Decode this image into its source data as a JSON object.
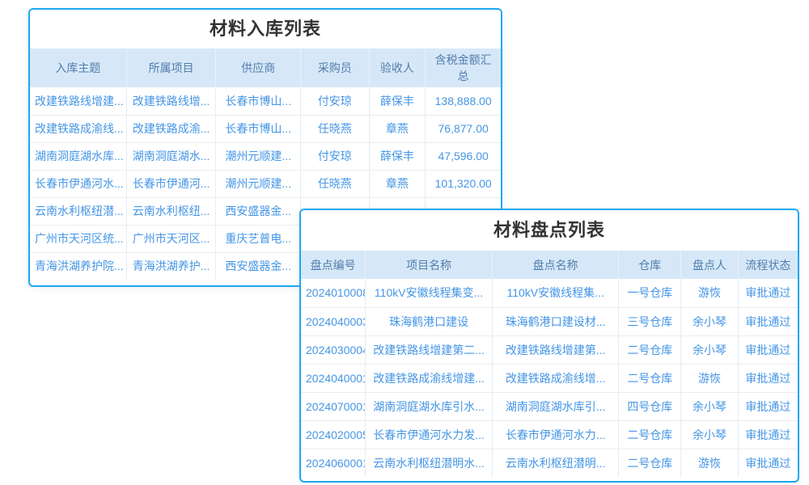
{
  "colors": {
    "panel_border": "#1ba8f0",
    "header_bg": "#d6e8f8",
    "header_text": "#527dab",
    "link_text": "#4596e5",
    "amount_text": "#333333",
    "status_approved": "#4caf50",
    "title_text": "#333333"
  },
  "inbound": {
    "title": "材料入库列表",
    "columns": [
      "入库主题",
      "所属项目",
      "供应商",
      "采购员",
      "验收人",
      "含税金额汇总"
    ],
    "rows": [
      [
        "改建铁路线增建...",
        "改建铁路线增...",
        "长春市博山...",
        "付安琼",
        "薛保丰",
        "138,888.00"
      ],
      [
        "改建铁路成渝线...",
        "改建铁路成渝...",
        "长春市博山...",
        "任晓燕",
        "章燕",
        "76,877.00"
      ],
      [
        "湖南洞庭湖水库...",
        "湖南洞庭湖水...",
        "潮州元顺建...",
        "付安琼",
        "薛保丰",
        "47,596.00"
      ],
      [
        "长春市伊通河水...",
        "长春市伊通河...",
        "潮州元顺建...",
        "任晓燕",
        "章燕",
        "101,320.00"
      ],
      [
        "云南水利枢纽潜...",
        "云南水利枢纽...",
        "西安盛器金...",
        "",
        "",
        ""
      ],
      [
        "广州市天河区统...",
        "广州市天河区...",
        "重庆艺普电...",
        "",
        "",
        ""
      ],
      [
        "青海洪湖养护院...",
        "青海洪湖养护...",
        "西安盛器金...",
        "",
        "",
        ""
      ]
    ]
  },
  "stocktake": {
    "title": "材料盘点列表",
    "columns": [
      "盘点编号",
      "项目名称",
      "盘点名称",
      "仓库",
      "盘点人",
      "流程状态"
    ],
    "rows": [
      [
        "2024010008",
        "110kV安徽线程集变...",
        "110kV安徽线程集...",
        "一号仓库",
        "游恢",
        "审批通过"
      ],
      [
        "2024040003",
        "珠海鹤港口建设",
        "珠海鹤港口建设材...",
        "三号仓库",
        "余小琴",
        "审批通过"
      ],
      [
        "2024030004",
        "改建铁路线增建第二...",
        "改建铁路线增建第...",
        "二号仓库",
        "余小琴",
        "审批通过"
      ],
      [
        "2024040001",
        "改建铁路成渝线增建...",
        "改建铁路成渝线增...",
        "二号仓库",
        "游恢",
        "审批通过"
      ],
      [
        "2024070001",
        "湖南洞庭湖水库引水...",
        "湖南洞庭湖水库引...",
        "四号仓库",
        "余小琴",
        "审批通过"
      ],
      [
        "2024020005",
        "长春市伊通河水力发...",
        "长春市伊通河水力...",
        "二号仓库",
        "余小琴",
        "审批通过"
      ],
      [
        "2024060001",
        "云南水利枢纽潜明水...",
        "云南水利枢纽潜明...",
        "二号仓库",
        "游恢",
        "审批通过"
      ]
    ]
  }
}
